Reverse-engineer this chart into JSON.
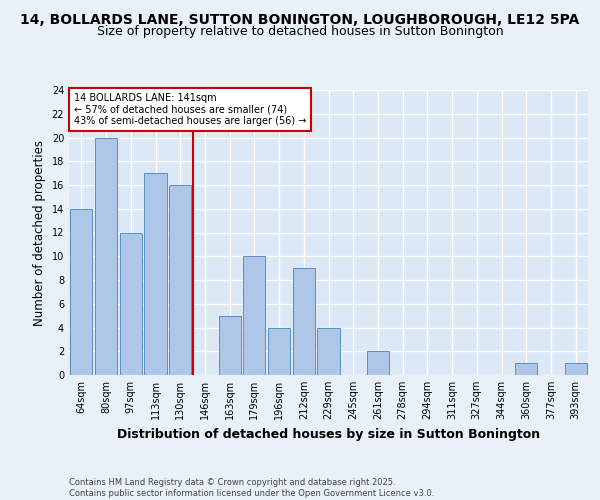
{
  "title1": "14, BOLLARDS LANE, SUTTON BONINGTON, LOUGHBOROUGH, LE12 5PA",
  "title2": "Size of property relative to detached houses in Sutton Bonington",
  "xlabel": "Distribution of detached houses by size in Sutton Bonington",
  "ylabel": "Number of detached properties",
  "categories": [
    "64sqm",
    "80sqm",
    "97sqm",
    "113sqm",
    "130sqm",
    "146sqm",
    "163sqm",
    "179sqm",
    "196sqm",
    "212sqm",
    "229sqm",
    "245sqm",
    "261sqm",
    "278sqm",
    "294sqm",
    "311sqm",
    "327sqm",
    "344sqm",
    "360sqm",
    "377sqm",
    "393sqm"
  ],
  "values": [
    14,
    20,
    12,
    17,
    16,
    0,
    5,
    10,
    4,
    9,
    4,
    0,
    2,
    0,
    0,
    0,
    0,
    0,
    1,
    0,
    1
  ],
  "bar_color": "#aec6e8",
  "bar_edge_color": "#5a8fc2",
  "vline_x": 5,
  "vline_color": "#cc0000",
  "annotation_text": "14 BOLLARDS LANE: 141sqm\n← 57% of detached houses are smaller (74)\n43% of semi-detached houses are larger (56) →",
  "annotation_box_color": "#cc0000",
  "ylim": [
    0,
    24
  ],
  "yticks": [
    0,
    2,
    4,
    6,
    8,
    10,
    12,
    14,
    16,
    18,
    20,
    22,
    24
  ],
  "footer": "Contains HM Land Registry data © Crown copyright and database right 2025.\nContains public sector information licensed under the Open Government Licence v3.0.",
  "bg_color": "#e8f0f8",
  "plot_bg_color": "#dce8f5",
  "grid_color": "#ffffff",
  "title_fontsize": 10,
  "subtitle_fontsize": 9,
  "axis_label_fontsize": 8.5,
  "tick_fontsize": 7,
  "footer_fontsize": 6,
  "annotation_fontsize": 7
}
